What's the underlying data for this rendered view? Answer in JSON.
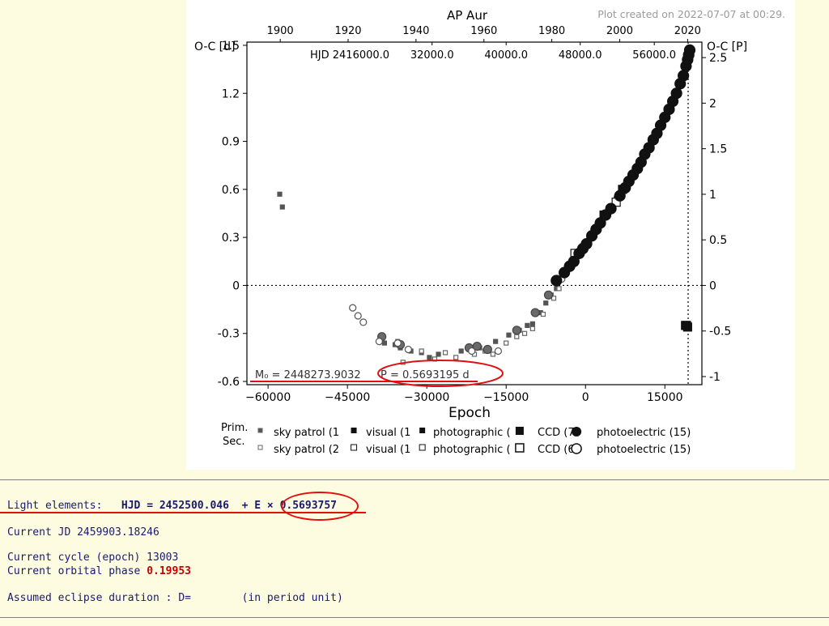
{
  "chart_data": {
    "type": "scatter",
    "title": "AP  Aur",
    "created_note": "Plot created on 2022-07-07 at 00:29.",
    "xlabel": "Epoch",
    "ylabel_left": "O-C [d]",
    "ylabel_right": "O-C [P]",
    "x_ticks": [
      "−60000",
      "−45000",
      "−30000",
      "−15000",
      "0",
      "15000"
    ],
    "x_tick_values": [
      -60000,
      -45000,
      -30000,
      -15000,
      0,
      15000
    ],
    "xlim": [
      -64000,
      22000
    ],
    "ylim": [
      -0.62,
      1.52
    ],
    "y_ticks": [
      "-0.6",
      "-0.3",
      "0",
      "0.3",
      "0.6",
      "0.9",
      "1.2",
      "1.5"
    ],
    "y_tick_values": [
      -0.6,
      -0.3,
      0,
      0.3,
      0.6,
      0.9,
      1.2,
      1.5
    ],
    "y2_ticks": [
      "-1",
      "-0.5",
      "0",
      "0.5",
      "1",
      "1.5",
      "2",
      "2.5"
    ],
    "y2_tick_values": [
      -1,
      -0.5,
      0,
      0.5,
      1,
      1.5,
      2,
      2.5
    ],
    "top_year_ticks": [
      "1900",
      "1920",
      "1940",
      "1960",
      "1980",
      "2000",
      "2020"
    ],
    "top_year_epochs": [
      -57700,
      -44870,
      -32040,
      -19200,
      -6370,
      6460,
      19300
    ],
    "hjd_label": "HJD 2416000.0",
    "hjd_ticks": [
      "32000.0",
      "40000.0",
      "48000.0",
      "56000.0"
    ],
    "hjd_tick_epochs": [
      -29000,
      -15000,
      -1000,
      13000
    ],
    "current_epoch": 19400,
    "annotation_m0": "M₀ = 2448273.9032",
    "annotation_p": "P = 0.5693195 d",
    "legend": {
      "prim_label": "Prim.",
      "sec_label": "Sec.",
      "prim_items": [
        "sky patrol (1",
        "visual (1",
        "photographic (",
        "CCD (7",
        "photoelectric (15)"
      ],
      "sec_items": [
        "sky patrol (2",
        "visual (1",
        "photographic (",
        "CCD (6",
        "photoelectric (15)"
      ]
    },
    "series": [
      {
        "marker": "filled-square-small",
        "points": [
          [
            -57800,
            0.57
          ],
          [
            -57300,
            0.49
          ],
          [
            -38000,
            -0.36
          ],
          [
            -36000,
            -0.37
          ],
          [
            -35000,
            -0.39
          ],
          [
            -33000,
            -0.41
          ],
          [
            -31000,
            -0.42
          ],
          [
            -29500,
            -0.45
          ],
          [
            -27800,
            -0.43
          ],
          [
            -23500,
            -0.41
          ],
          [
            -22000,
            -0.4
          ],
          [
            -20000,
            -0.39
          ],
          [
            -17000,
            -0.35
          ],
          [
            -14500,
            -0.31
          ],
          [
            -12500,
            -0.28
          ],
          [
            -11000,
            -0.25
          ],
          [
            -10000,
            -0.24
          ],
          [
            -8500,
            -0.17
          ],
          [
            -7500,
            -0.11
          ],
          [
            -6500,
            -0.06
          ],
          [
            -5500,
            -0.02
          ],
          [
            18800,
            -0.26
          ],
          [
            19000,
            -0.25
          ]
        ]
      },
      {
        "marker": "open-square-small",
        "points": [
          [
            -38500,
            -0.33
          ],
          [
            -35500,
            -0.35
          ],
          [
            -34500,
            -0.48
          ],
          [
            -31000,
            -0.41
          ],
          [
            -28500,
            -0.46
          ],
          [
            -26500,
            -0.42
          ],
          [
            -24500,
            -0.45
          ],
          [
            -21000,
            -0.43
          ],
          [
            -19000,
            -0.41
          ],
          [
            -17500,
            -0.43
          ],
          [
            -15000,
            -0.36
          ],
          [
            -13000,
            -0.32
          ],
          [
            -11500,
            -0.3
          ],
          [
            -10000,
            -0.27
          ],
          [
            -8000,
            -0.18
          ],
          [
            -6000,
            -0.08
          ],
          [
            -5000,
            -0.02
          ]
        ]
      },
      {
        "marker": "gray-circle",
        "points": [
          [
            -38500,
            -0.32
          ],
          [
            -35000,
            -0.37
          ],
          [
            -22000,
            -0.39
          ],
          [
            -20500,
            -0.38
          ],
          [
            -18500,
            -0.4
          ],
          [
            -13000,
            -0.28
          ],
          [
            -9500,
            -0.17
          ],
          [
            -7000,
            -0.06
          ]
        ]
      },
      {
        "marker": "open-circle",
        "points": [
          [
            -44000,
            -0.14
          ],
          [
            -43000,
            -0.19
          ],
          [
            -42000,
            -0.23
          ],
          [
            -39000,
            -0.35
          ],
          [
            -35500,
            -0.36
          ],
          [
            -33500,
            -0.4
          ],
          [
            -21500,
            -0.41
          ],
          [
            -16500,
            -0.41
          ],
          [
            -4500,
            0.04
          ],
          [
            800,
            0.29
          ],
          [
            1600,
            0.33
          ],
          [
            3000,
            0.4
          ],
          [
            6000,
            0.55
          ]
        ]
      },
      {
        "marker": "filled-square-large",
        "points": [
          [
            3500,
            0.44
          ],
          [
            7000,
            0.6
          ],
          [
            18900,
            -0.25
          ],
          [
            19100,
            -0.25
          ],
          [
            19300,
            -0.26
          ]
        ]
      },
      {
        "marker": "open-square-large",
        "points": [
          [
            5800,
            0.52
          ],
          [
            -2000,
            0.2
          ]
        ]
      },
      {
        "marker": "filled-circle-large",
        "points": [
          [
            -5500,
            0.03
          ],
          [
            -4000,
            0.08
          ],
          [
            -3000,
            0.12
          ],
          [
            -2200,
            0.15
          ],
          [
            -1200,
            0.2
          ],
          [
            -500,
            0.23
          ],
          [
            200,
            0.26
          ],
          [
            1200,
            0.31
          ],
          [
            2000,
            0.35
          ],
          [
            2800,
            0.39
          ],
          [
            3800,
            0.44
          ],
          [
            4800,
            0.48
          ],
          [
            6500,
            0.56
          ],
          [
            7500,
            0.61
          ],
          [
            8200,
            0.65
          ],
          [
            9000,
            0.69
          ],
          [
            9800,
            0.73
          ],
          [
            10500,
            0.77
          ],
          [
            11200,
            0.82
          ],
          [
            12000,
            0.86
          ],
          [
            12800,
            0.91
          ],
          [
            13500,
            0.95
          ],
          [
            14200,
            1.0
          ],
          [
            15000,
            1.05
          ],
          [
            15800,
            1.1
          ],
          [
            16500,
            1.15
          ],
          [
            17200,
            1.2
          ],
          [
            17900,
            1.26
          ],
          [
            18500,
            1.31
          ],
          [
            19000,
            1.37
          ],
          [
            19300,
            1.41
          ],
          [
            19500,
            1.44
          ],
          [
            19700,
            1.47
          ]
        ]
      }
    ]
  },
  "info": {
    "light_label": "Light elements:",
    "light_formula": "HJD = 2452500.046  + E × ",
    "light_period": "0.5693757",
    "current_jd": "Current JD 2459903.18246",
    "current_cycle": "Current cycle (epoch) 13003",
    "phase_label": "Current orbital phase ",
    "phase_value": "0.19953",
    "eclipse": "Assumed eclipse duration : D=        (in period unit)"
  },
  "colors": {
    "background": "#fdfce0",
    "dark_marker": "#111111",
    "gray_marker": "#555555",
    "highlight": "#e01010",
    "text_blue": "#1a1a6e",
    "phase_red": "#c80000"
  }
}
